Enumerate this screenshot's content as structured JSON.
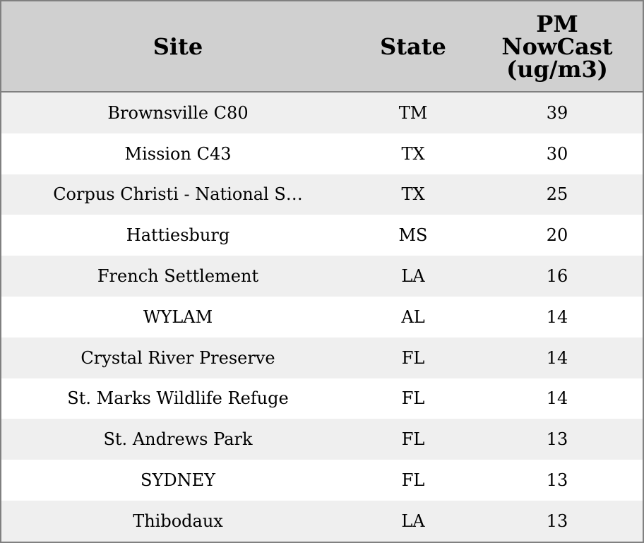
{
  "table": {
    "columns": [
      "Site",
      "State",
      "PM NowCast (ug/m3)"
    ],
    "rows": [
      [
        "Brownsville C80",
        "TM",
        39
      ],
      [
        "Mission C43",
        "TX",
        30
      ],
      [
        "Corpus Christi - National S…",
        "TX",
        25
      ],
      [
        "Hattiesburg",
        "MS",
        20
      ],
      [
        "French Settlement",
        "LA",
        16
      ],
      [
        "WYLAM",
        "AL",
        14
      ],
      [
        "Crystal River Preserve",
        "FL",
        14
      ],
      [
        "St. Marks Wildlife Refuge",
        "FL",
        14
      ],
      [
        "St. Andrews Park",
        "FL",
        13
      ],
      [
        "SYDNEY",
        "FL",
        13
      ],
      [
        "Thibodaux",
        "LA",
        13
      ]
    ]
  }
}
